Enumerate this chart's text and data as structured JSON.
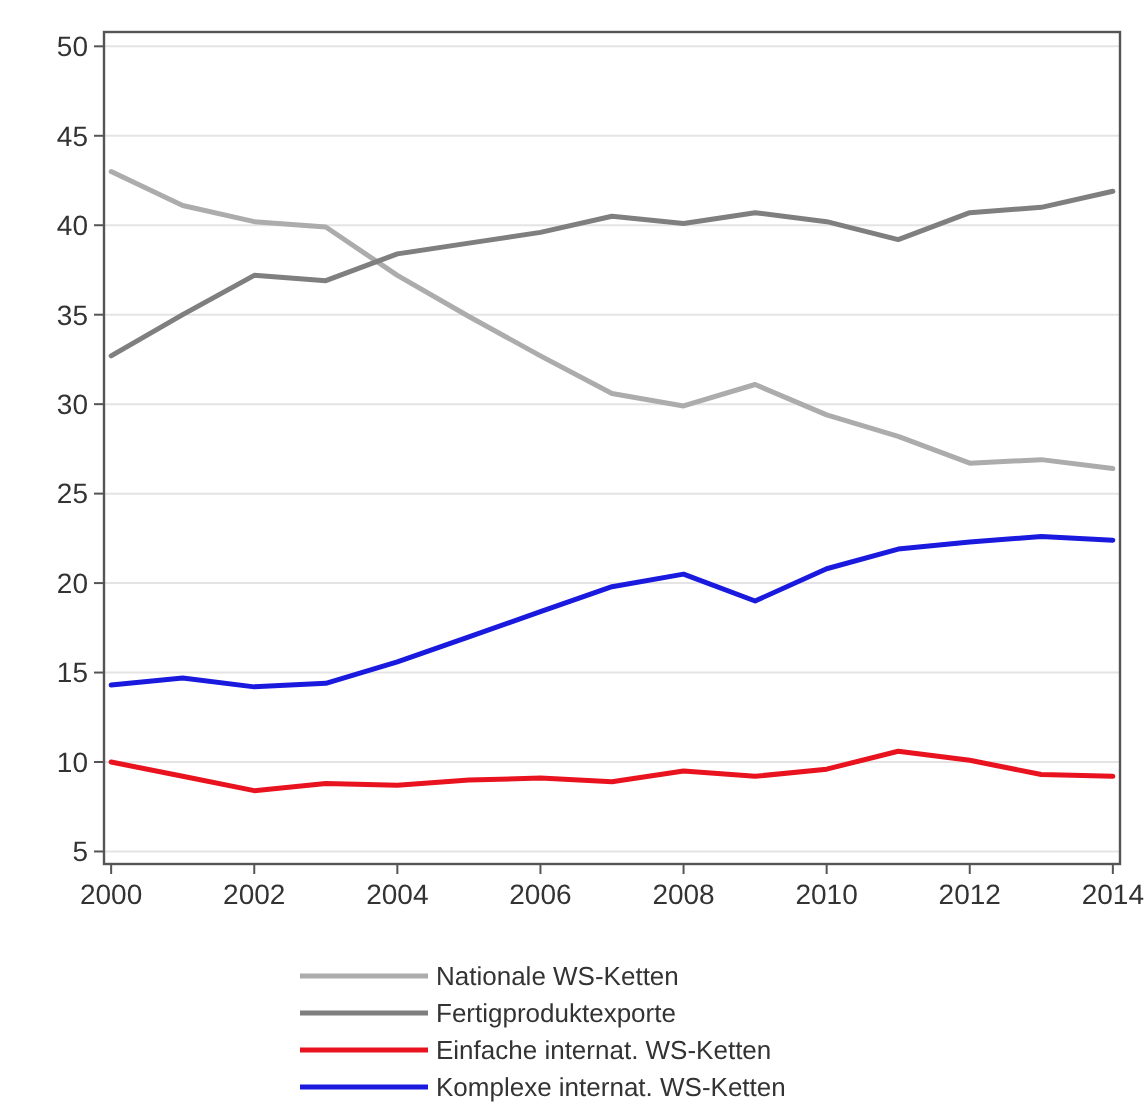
{
  "chart_data": {
    "type": "line",
    "x": [
      2000,
      2001,
      2002,
      2003,
      2004,
      2005,
      2006,
      2007,
      2008,
      2009,
      2010,
      2011,
      2012,
      2013,
      2014
    ],
    "series": [
      {
        "name": "Nationale WS-Ketten",
        "color": "#acacac",
        "values": [
          43,
          41.1,
          40.2,
          39.9,
          37.2,
          34.9,
          32.7,
          30.6,
          29.9,
          31.1,
          29.4,
          28.2,
          26.7,
          26.9,
          26.4
        ]
      },
      {
        "name": "Fertigproduktexporte",
        "color": "#7f7f7f",
        "values": [
          32.7,
          35,
          37.2,
          36.9,
          38.4,
          39,
          39.6,
          40.5,
          40.1,
          40.7,
          40.2,
          39.2,
          40.7,
          41,
          41.9
        ]
      },
      {
        "name": "Einfache internat. WS-Ketten",
        "color": "#e8131f",
        "values": [
          10,
          9.2,
          8.4,
          8.8,
          8.7,
          9,
          9.1,
          8.9,
          9.5,
          9.2,
          9.6,
          10.6,
          10.1,
          9.3,
          9.2
        ]
      },
      {
        "name": "Komplexe internat. WS-Ketten",
        "color": "#1a1adf",
        "values": [
          14.3,
          14.7,
          14.2,
          14.4,
          15.6,
          17,
          18.4,
          19.8,
          20.5,
          19,
          20.8,
          21.9,
          22.3,
          22.6,
          22.4
        ]
      }
    ],
    "xlim": [
      1999.9,
      2014.1
    ],
    "xticks": [
      2000,
      2002,
      2004,
      2006,
      2008,
      2010,
      2012,
      2014
    ],
    "ylim": [
      4.3,
      50.8
    ],
    "yticks": [
      5,
      10,
      15,
      20,
      25,
      30,
      35,
      40,
      45,
      50
    ],
    "grid": "y",
    "legend": "bottom"
  }
}
